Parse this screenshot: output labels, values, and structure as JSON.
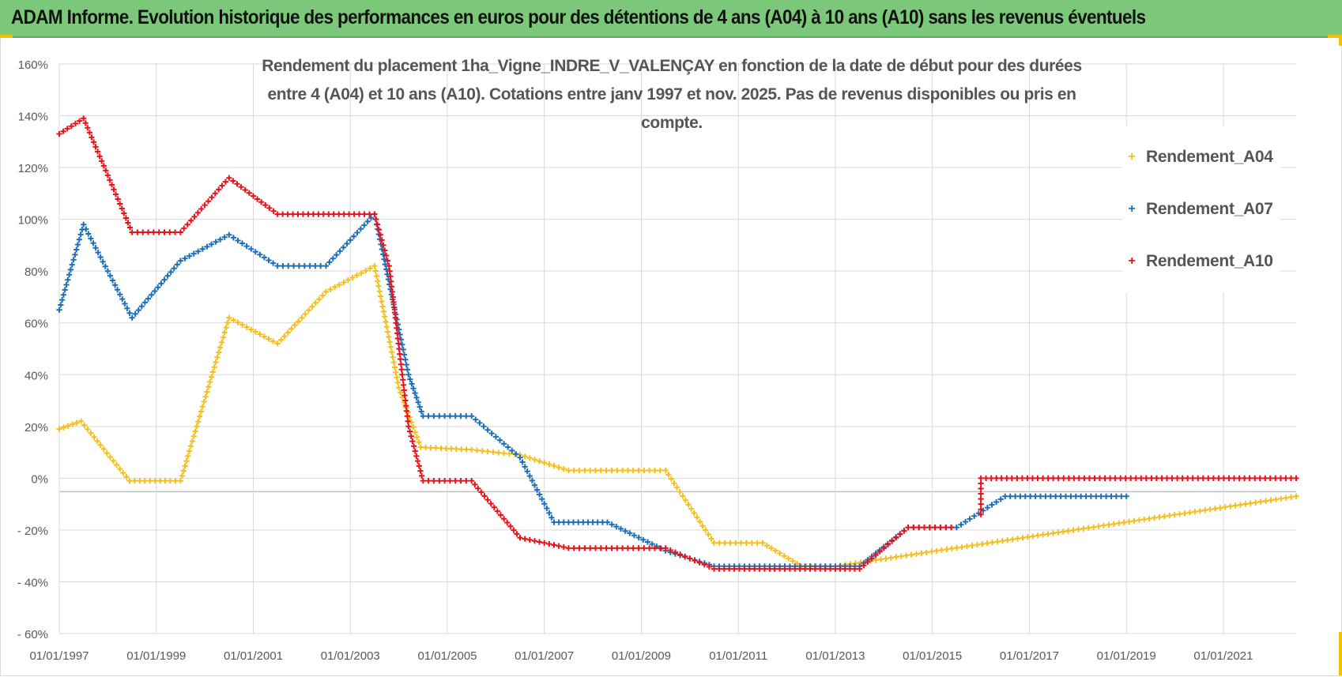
{
  "banner": {
    "text": "ADAM Informe. Evolution historique des performances en euros pour des détentions de 4 ans (A04) à 10 ans (A10) sans les revenus éventuels",
    "color": "#7cc87a"
  },
  "chart_data": {
    "type": "scatter",
    "title_line1": "Rendement du placement 1ha_Vigne_INDRE_V_VALENÇAY en fonction de la date de début pour des durées",
    "title_line2": "entre 4 (A04) et 10 ans (A10).  Cotations entre janv 1997 et nov. 2025. Pas de revenus disponibles ou pris en compte.",
    "xlabel": "",
    "ylabel": "",
    "ylim": [
      -60,
      160
    ],
    "xlim": [
      1997.0,
      2022.5
    ],
    "yticks": [
      "160%",
      "140%",
      "120%",
      "100%",
      "80%",
      "60%",
      "40%",
      "20%",
      "0%",
      "- 20%",
      "- 40%",
      "- 60%"
    ],
    "xticks": [
      "01/01/1997",
      "01/01/1999",
      "01/01/2001",
      "01/01/2003",
      "01/01/2005",
      "01/01/2007",
      "01/01/2009",
      "01/01/2011",
      "01/01/2013",
      "01/01/2015",
      "01/01/2017",
      "01/01/2019",
      "01/01/2021"
    ],
    "grid": true,
    "legend_position": "top-right",
    "marker": "+",
    "series": [
      {
        "name": "Rendement_A04",
        "color": "#f5be1c",
        "points": [
          [
            1997.0,
            19
          ],
          [
            1997.45,
            22
          ],
          [
            1998.45,
            -1
          ],
          [
            1999.5,
            -1
          ],
          [
            2000.5,
            62
          ],
          [
            2001.5,
            52
          ],
          [
            2002.5,
            72
          ],
          [
            2003.5,
            82
          ],
          [
            2004.0,
            35
          ],
          [
            2004.45,
            12
          ],
          [
            2005.5,
            11
          ],
          [
            2006.5,
            9
          ],
          [
            2007.5,
            3
          ],
          [
            2008.5,
            3
          ],
          [
            2009.5,
            3
          ],
          [
            2010.5,
            -25
          ],
          [
            2011.5,
            -25
          ],
          [
            2012.3,
            -34
          ],
          [
            2013.0,
            -34
          ],
          [
            2022.5,
            -7
          ]
        ],
        "breaks": []
      },
      {
        "name": "Rendement_A07",
        "color": "#1e6fb8",
        "points": [
          [
            1997.0,
            65
          ],
          [
            1997.5,
            98
          ],
          [
            1998.5,
            62
          ],
          [
            1999.5,
            84
          ],
          [
            2000.5,
            94
          ],
          [
            2001.5,
            82
          ],
          [
            2002.5,
            82
          ],
          [
            2003.5,
            102
          ],
          [
            2004.2,
            40
          ],
          [
            2004.5,
            24
          ],
          [
            2005.5,
            24
          ],
          [
            2006.5,
            8
          ],
          [
            2007.2,
            -17
          ],
          [
            2007.5,
            -17
          ],
          [
            2008.3,
            -17
          ],
          [
            2009.5,
            -28
          ],
          [
            2010.5,
            -34
          ],
          [
            2013.0,
            -34
          ],
          [
            2013.5,
            -34
          ],
          [
            2014.5,
            -19
          ],
          [
            2015.5,
            -19
          ],
          [
            2016.5,
            -7
          ],
          [
            2019.0,
            -7
          ]
        ],
        "breaks": []
      },
      {
        "name": "Rendement_A10",
        "color": "#e8131a",
        "points": [
          [
            1997.0,
            133
          ],
          [
            1997.5,
            139
          ],
          [
            1998.5,
            95
          ],
          [
            1999.5,
            95
          ],
          [
            2000.5,
            116
          ],
          [
            2001.5,
            102
          ],
          [
            2003.5,
            102
          ],
          [
            2003.8,
            82
          ],
          [
            2004.2,
            20
          ],
          [
            2004.5,
            -1
          ],
          [
            2005.5,
            -1
          ],
          [
            2006.5,
            -23
          ],
          [
            2007.5,
            -27
          ],
          [
            2008.5,
            -27
          ],
          [
            2009.5,
            -27
          ],
          [
            2010.5,
            -35
          ],
          [
            2013.0,
            -35
          ],
          [
            2013.5,
            -35
          ],
          [
            2014.5,
            -19
          ],
          [
            2015.5,
            -19
          ],
          [
            2016.0,
            -14
          ],
          [
            2016.0,
            0
          ],
          [
            2022.5,
            0
          ]
        ],
        "breaks": [
          20
        ]
      }
    ]
  }
}
